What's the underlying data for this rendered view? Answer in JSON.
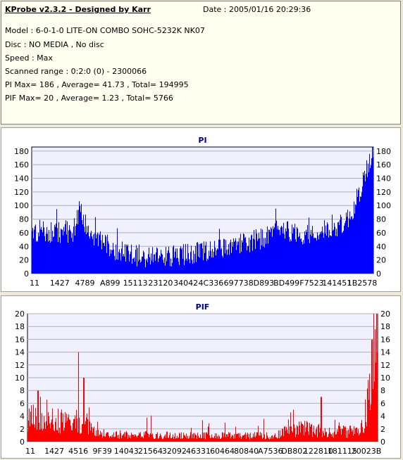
{
  "header": {
    "title": "KProbe v2.3.2 - Designed by Karr",
    "date": "Date : 2005/01/16 20:29:36",
    "lines": [
      "Model : 6-0-1-0 LITE-ON COMBO SOHC-5232K NK07",
      "Disc : NO MEDIA , No disc",
      "Speed : Max",
      "Scanned range : 0:2:0 (0) - 2300066",
      "PI Max= 186 , Average= 41.73 , Total= 194995",
      "PIF Max= 20 , Average= 1.23 , Total= 5766"
    ]
  },
  "colors": {
    "plot_bg": "#f0f0ff",
    "pi_fill": "#0000ff",
    "pif_fill": "#ff0000",
    "grid": "#b0b0b0"
  },
  "chart_data": [
    {
      "type": "bar",
      "title": "PI",
      "ylim": [
        0,
        186
      ],
      "yticks": [
        0,
        20,
        40,
        60,
        80,
        100,
        120,
        140,
        160,
        180
      ],
      "x_tick_labels": [
        "11",
        "1427",
        "4789",
        "A899",
        "15113",
        "23120",
        "34042",
        "4C336",
        "69773",
        "8D893",
        "BD499",
        "F7523",
        "141451",
        "1B2578"
      ],
      "grid": true,
      "envelope": [
        [
          0,
          55
        ],
        [
          4,
          62
        ],
        [
          8,
          60
        ],
        [
          12,
          58
        ],
        [
          14,
          100
        ],
        [
          15.5,
          75
        ],
        [
          17,
          55
        ],
        [
          20,
          50
        ],
        [
          23,
          38
        ],
        [
          27,
          30
        ],
        [
          31,
          26
        ],
        [
          35,
          25
        ],
        [
          40,
          26
        ],
        [
          45,
          28
        ],
        [
          50,
          33
        ],
        [
          55,
          38
        ],
        [
          60,
          43
        ],
        [
          65,
          48
        ],
        [
          70,
          56
        ],
        [
          73,
          72
        ],
        [
          76,
          60
        ],
        [
          80,
          58
        ],
        [
          85,
          62
        ],
        [
          88,
          68
        ],
        [
          91,
          72
        ],
        [
          94,
          90
        ],
        [
          97,
          135
        ],
        [
          99,
          165
        ],
        [
          100,
          182
        ]
      ],
      "jitter": 16
    },
    {
      "type": "bar",
      "title": "PIF",
      "ylim": [
        0,
        20
      ],
      "yticks": [
        0,
        2,
        4,
        6,
        8,
        10,
        12,
        14,
        16,
        18,
        20
      ],
      "x_tick_labels": [
        "11",
        "1427",
        "4516",
        "9F39",
        "14043",
        "21564",
        "32092",
        "46331",
        "60464",
        "80840",
        "A7536",
        "DB802",
        "122810",
        "181115",
        "20023B"
      ],
      "grid": true,
      "envelope": [
        [
          0,
          3.5
        ],
        [
          5,
          4
        ],
        [
          9,
          3
        ],
        [
          14,
          3
        ],
        [
          15.5,
          2.5
        ],
        [
          18,
          2
        ],
        [
          21,
          1.2
        ],
        [
          30,
          1
        ],
        [
          50,
          0.9
        ],
        [
          70,
          0.9
        ],
        [
          74,
          1.5
        ],
        [
          79,
          2
        ],
        [
          85,
          1.5
        ],
        [
          90,
          1.5
        ],
        [
          94,
          1.5
        ],
        [
          96,
          2.5
        ],
        [
          98,
          9
        ],
        [
          100,
          15
        ]
      ],
      "jitter": 2.5,
      "spikes": [
        [
          3,
          8
        ],
        [
          14.5,
          14
        ],
        [
          16,
          10
        ],
        [
          76,
          5
        ],
        [
          84,
          7
        ],
        [
          99,
          20
        ],
        [
          98.6,
          16
        ]
      ]
    }
  ]
}
